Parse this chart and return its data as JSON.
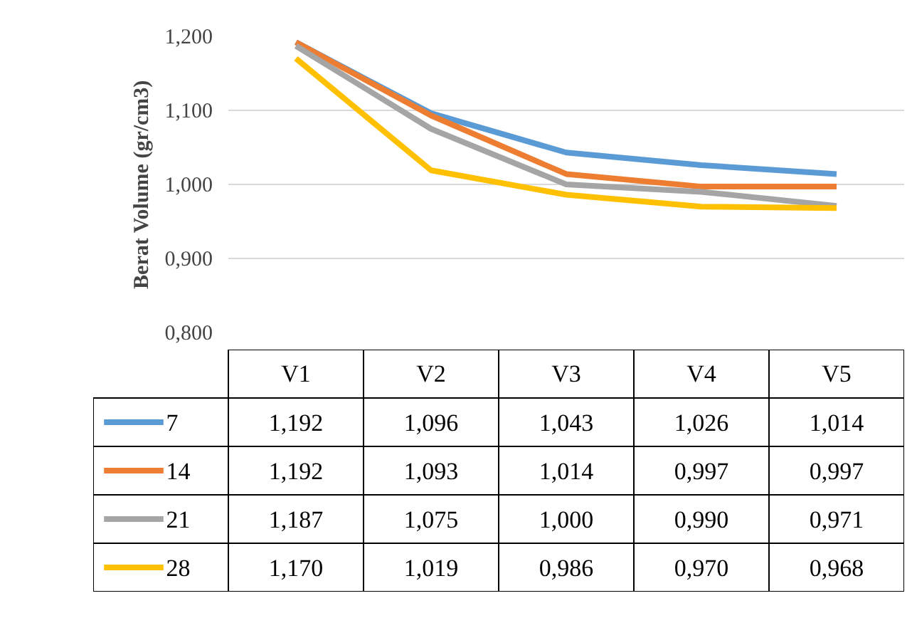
{
  "chart_data": {
    "type": "line",
    "ylabel": "Berat Volume (gr/cm3)",
    "categories": [
      "V1",
      "V2",
      "V3",
      "V4",
      "V5"
    ],
    "ylim": [
      0.8,
      1.2
    ],
    "yticks": [
      {
        "value": 0.8,
        "label": "0,800"
      },
      {
        "value": 0.9,
        "label": "0,900"
      },
      {
        "value": 1.0,
        "label": "1,000"
      },
      {
        "value": 1.1,
        "label": "1,100"
      },
      {
        "value": 1.2,
        "label": "1,200"
      }
    ],
    "grid": "y",
    "legend": "bottom",
    "marker": "none",
    "line_style": "solid",
    "series": [
      {
        "name": "7",
        "color": "#5b9bd5",
        "values": [
          1.192,
          1.096,
          1.043,
          1.026,
          1.014
        ],
        "value_labels": [
          "1,192",
          "1,096",
          "1,043",
          "1,026",
          "1,014"
        ]
      },
      {
        "name": "14",
        "color": "#ed7d31",
        "values": [
          1.192,
          1.093,
          1.014,
          0.997,
          0.997
        ],
        "value_labels": [
          "1,192",
          "1,093",
          "1,014",
          "0,997",
          "0,997"
        ]
      },
      {
        "name": "21",
        "color": "#a5a5a5",
        "values": [
          1.187,
          1.075,
          1.0,
          0.99,
          0.971
        ],
        "value_labels": [
          "1,187",
          "1,075",
          "1,000",
          "0,990",
          "0,971"
        ]
      },
      {
        "name": "28",
        "color": "#ffc000",
        "values": [
          1.17,
          1.019,
          0.986,
          0.97,
          0.968
        ],
        "value_labels": [
          "1,170",
          "1,019",
          "0,986",
          "0,970",
          "0,968"
        ]
      }
    ]
  }
}
